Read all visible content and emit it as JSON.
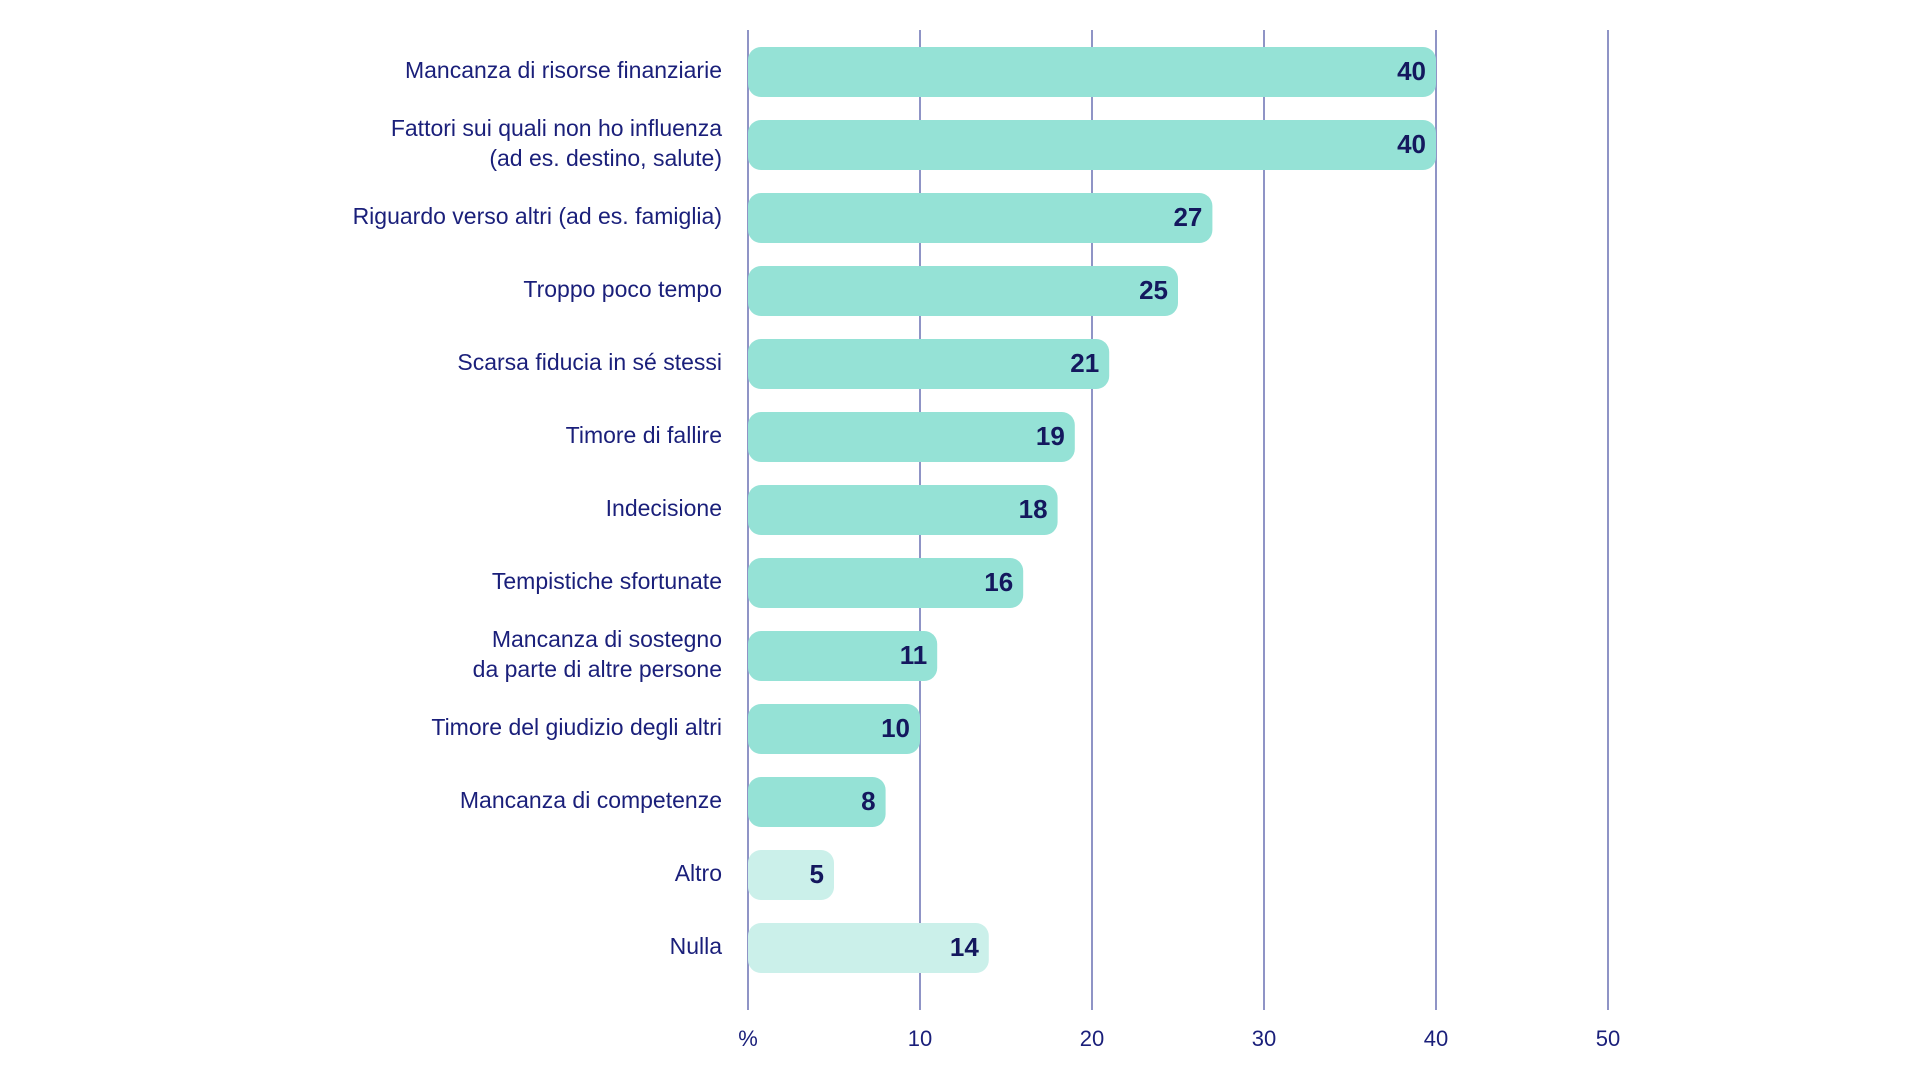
{
  "chart_data": {
    "type": "bar",
    "orientation": "horizontal",
    "categories": [
      [
        "Mancanza di risorse finanziarie"
      ],
      [
        "Fattori sui quali non ho influenza",
        "(ad es. destino, salute)"
      ],
      [
        "Riguardo verso altri (ad es. famiglia)"
      ],
      [
        "Troppo poco tempo"
      ],
      [
        "Scarsa fiducia in sé stessi"
      ],
      [
        "Timore di fallire"
      ],
      [
        "Indecisione"
      ],
      [
        "Tempistiche sfortunate"
      ],
      [
        "Mancanza di sostegno",
        "da parte di altre persone"
      ],
      [
        "Timore del giudizio degli altri"
      ],
      [
        "Mancanza di competenze"
      ],
      [
        "Altro"
      ],
      [
        "Nulla"
      ]
    ],
    "values": [
      40,
      40,
      27,
      25,
      21,
      19,
      18,
      16,
      11,
      10,
      8,
      5,
      14
    ],
    "value_labels": [
      "40",
      "40",
      "27",
      "25",
      "21",
      "19",
      "18",
      "16",
      "11",
      "10",
      "8",
      "5",
      "14"
    ],
    "bar_colors": [
      "#95e2d6",
      "#95e2d6",
      "#95e2d6",
      "#95e2d6",
      "#95e2d6",
      "#95e2d6",
      "#95e2d6",
      "#95e2d6",
      "#95e2d6",
      "#95e2d6",
      "#95e2d6",
      "#cbf0ea",
      "#cbf0ea"
    ],
    "x_ticks": [
      0,
      10,
      20,
      30,
      40,
      50
    ],
    "x_tick_labels": [
      "%",
      "10",
      "20",
      "30",
      "40",
      "50"
    ],
    "xlim": [
      0,
      50
    ],
    "grid": true,
    "title": "",
    "xlabel": "",
    "ylabel": ""
  },
  "colors": {
    "bar_main": "#95e2d6",
    "bar_light": "#cbf0ea",
    "text": "#1a1f7a",
    "value_text": "#14185e",
    "gridline": "#8f94c6"
  }
}
